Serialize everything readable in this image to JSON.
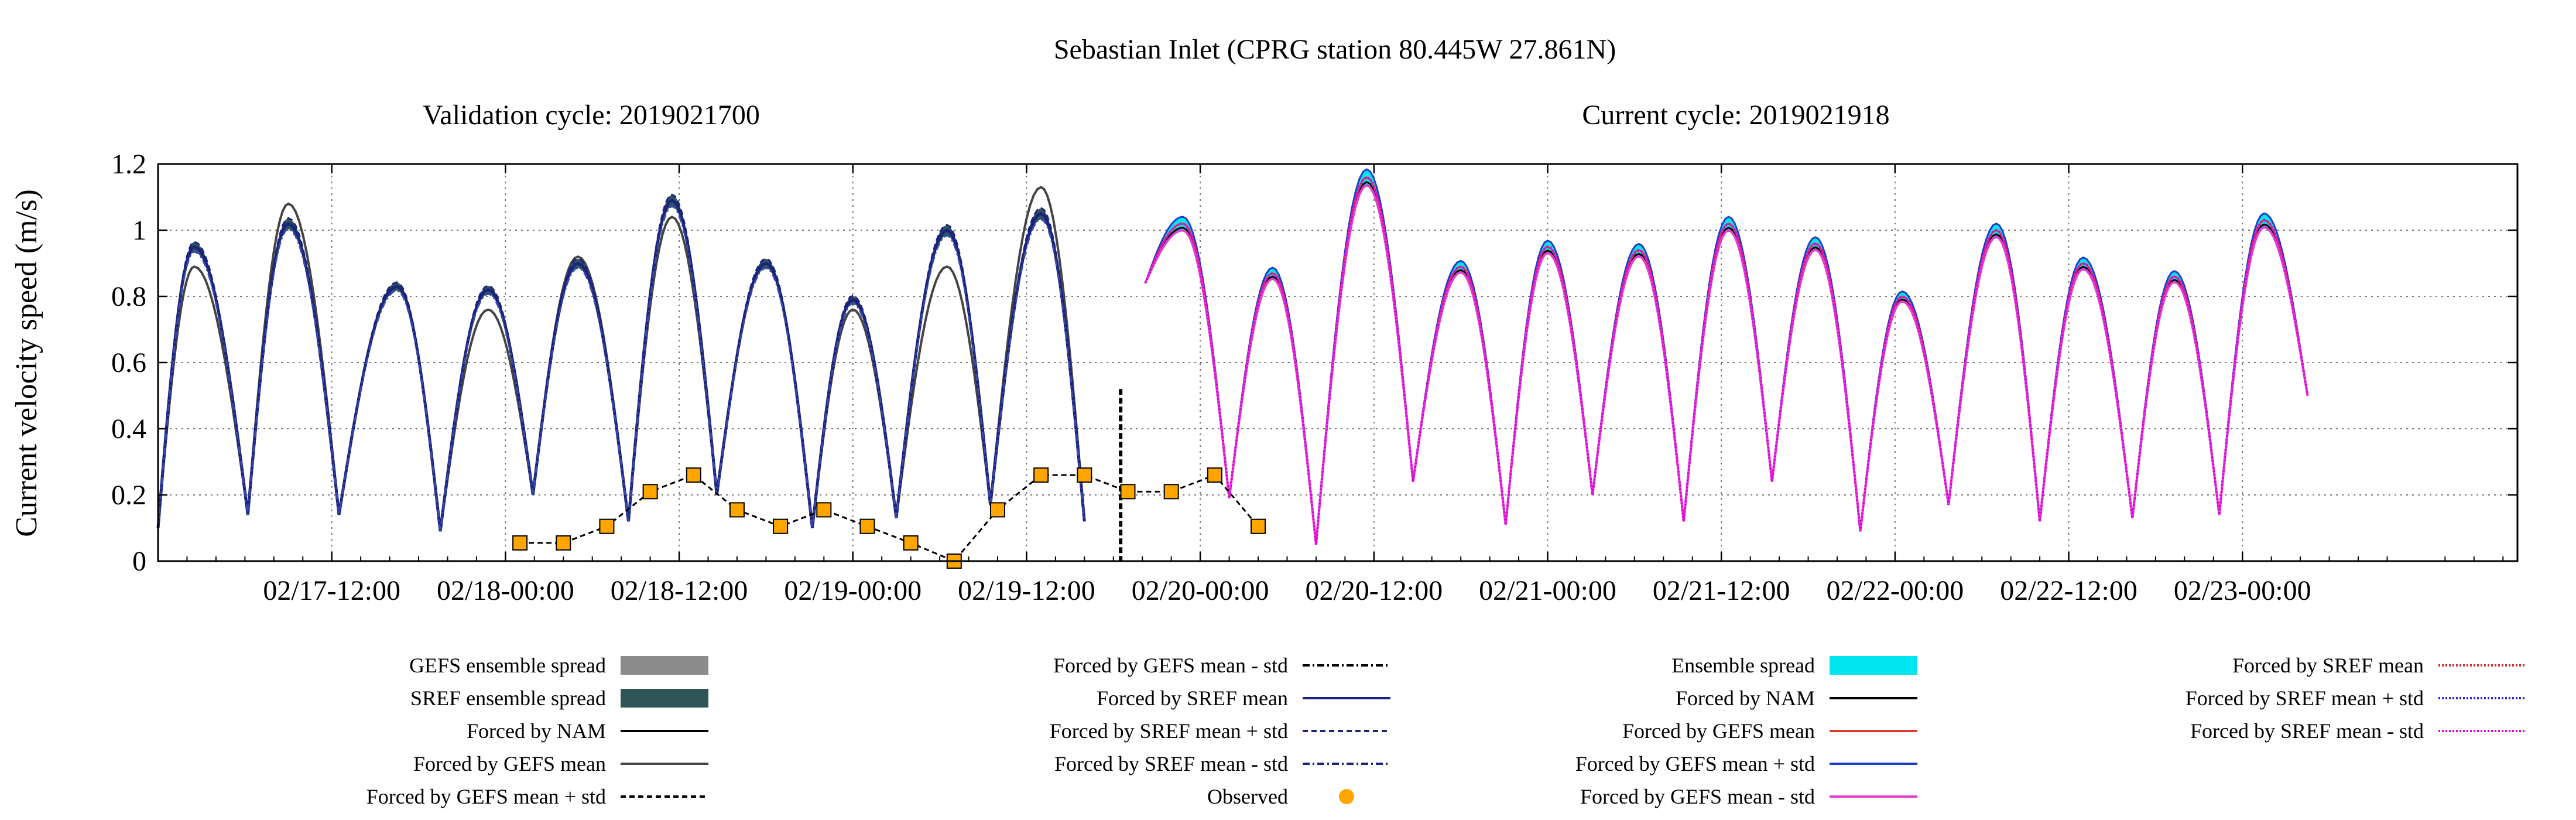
{
  "chart_data": {
    "type": "line",
    "title": "Sebastian Inlet (CPRG station 80.445W 27.861N)",
    "subtitles": {
      "left": "Validation cycle: 2019021700",
      "right": "Current cycle: 2019021918"
    },
    "ylabel": "Current velocity speed (m/s)",
    "xlabel": "",
    "ylim": [
      0,
      1.2
    ],
    "xlim_hours": [
      0,
      163
    ],
    "yticks": [
      "0",
      "0.2",
      "0.4",
      "0.6",
      "0.8",
      "1",
      "1.2"
    ],
    "xticks": [
      "02/17-12:00",
      "02/18-00:00",
      "02/18-12:00",
      "02/19-00:00",
      "02/19-12:00",
      "02/20-00:00",
      "02/20-12:00",
      "02/21-00:00",
      "02/21-12:00",
      "02/22-00:00",
      "02/22-12:00",
      "02/23-00:00"
    ],
    "grid": true,
    "cycle_divider_label": "",
    "legend": [
      {
        "label": "GEFS ensemble spread",
        "color": "#8c8c8c",
        "style": "band"
      },
      {
        "label": "SREF ensemble spread",
        "color": "#2f5656",
        "style": "band"
      },
      {
        "label": "Forced by NAM",
        "color": "#000000",
        "style": "solid"
      },
      {
        "label": "Forced by GEFS mean",
        "color": "#444444",
        "style": "solid"
      },
      {
        "label": "Forced by GEFS mean + std",
        "color": "#000000",
        "style": "dashed"
      },
      {
        "label": "Forced by GEFS mean - std",
        "color": "#000000",
        "style": "dashdot"
      },
      {
        "label": "Forced by SREF mean",
        "color": "#1a237e",
        "style": "solid"
      },
      {
        "label": "Forced by SREF mean + std",
        "color": "#1a237e",
        "style": "dashed"
      },
      {
        "label": "Forced by SREF mean - std",
        "color": "#1a237e",
        "style": "dashdot"
      },
      {
        "label": "Observed",
        "color": "#ffa500",
        "style": "dot"
      },
      {
        "label": "Ensemble spread",
        "color": "#00e5ee",
        "style": "band"
      },
      {
        "label": "Forced by NAM",
        "color": "#000000",
        "style": "solid"
      },
      {
        "label": "Forced by GEFS mean",
        "color": "#e53935",
        "style": "solid"
      },
      {
        "label": "Forced by GEFS mean + std",
        "color": "#1e3cc8",
        "style": "solid"
      },
      {
        "label": "Forced by GEFS mean - std",
        "color": "#e040d0",
        "style": "solid"
      },
      {
        "label": "Forced by SREF mean",
        "color": "#d32f2f",
        "style": "dotted"
      },
      {
        "label": "Forced by SREF mean + std",
        "color": "#2a2ad0",
        "style": "dotted"
      },
      {
        "label": "Forced by SREF mean - std",
        "color": "#e000e0",
        "style": "dotted"
      }
    ],
    "validation_peaks": [
      {
        "t": 2.5,
        "sref": 0.95,
        "gefs": 0.89
      },
      {
        "t": 9.0,
        "sref": 1.02,
        "gefs": 1.08
      },
      {
        "t": 16.5,
        "sref": 0.83,
        "gefs": 0.83
      },
      {
        "t": 22.8,
        "sref": 0.82,
        "gefs": 0.76
      },
      {
        "t": 29.0,
        "sref": 0.9,
        "gefs": 0.92
      },
      {
        "t": 35.5,
        "sref": 1.09,
        "gefs": 1.04
      },
      {
        "t": 42.0,
        "sref": 0.9,
        "gefs": 0.9
      },
      {
        "t": 48.0,
        "sref": 0.79,
        "gefs": 0.76
      },
      {
        "t": 54.5,
        "sref": 1.0,
        "gefs": 0.89
      },
      {
        "t": 61.0,
        "sref": 1.05,
        "gefs": 1.13
      }
    ],
    "validation_troughs": [
      {
        "t": 0.0,
        "v": 0.1
      },
      {
        "t": 6.2,
        "v": 0.14
      },
      {
        "t": 12.5,
        "v": 0.14
      },
      {
        "t": 19.5,
        "v": 0.09
      },
      {
        "t": 25.9,
        "v": 0.2
      },
      {
        "t": 32.5,
        "v": 0.12
      },
      {
        "t": 38.6,
        "v": 0.2
      },
      {
        "t": 45.2,
        "v": 0.1
      },
      {
        "t": 51.0,
        "v": 0.13
      },
      {
        "t": 57.5,
        "v": 0.17
      },
      {
        "t": 64.0,
        "v": 0.12
      },
      {
        "t": 68.2,
        "v": 0.84
      }
    ],
    "current_peaks": [
      {
        "t": 70.8,
        "v": 1.02
      },
      {
        "t": 77.0,
        "v": 0.87
      },
      {
        "t": 83.5,
        "v": 1.16
      },
      {
        "t": 90.0,
        "v": 0.89
      },
      {
        "t": 96.0,
        "v": 0.95
      },
      {
        "t": 102.3,
        "v": 0.94
      },
      {
        "t": 108.5,
        "v": 1.02
      },
      {
        "t": 114.5,
        "v": 0.96
      },
      {
        "t": 120.5,
        "v": 0.8
      },
      {
        "t": 127.0,
        "v": 1.0
      },
      {
        "t": 133.0,
        "v": 0.9
      },
      {
        "t": 139.3,
        "v": 0.86
      },
      {
        "t": 145.5,
        "v": 1.03
      }
    ],
    "current_troughs": [
      {
        "t": 68.2,
        "v": 0.84
      },
      {
        "t": 74.0,
        "v": 0.19
      },
      {
        "t": 80.0,
        "v": 0.05
      },
      {
        "t": 86.7,
        "v": 0.24
      },
      {
        "t": 93.1,
        "v": 0.11
      },
      {
        "t": 99.1,
        "v": 0.2
      },
      {
        "t": 105.4,
        "v": 0.12
      },
      {
        "t": 111.5,
        "v": 0.24
      },
      {
        "t": 117.6,
        "v": 0.09
      },
      {
        "t": 123.7,
        "v": 0.17
      },
      {
        "t": 130.0,
        "v": 0.12
      },
      {
        "t": 136.4,
        "v": 0.13
      },
      {
        "t": 142.4,
        "v": 0.14
      },
      {
        "t": 148.5,
        "v": 0.5
      }
    ],
    "observed": [
      {
        "t": 25.0,
        "v": 0.055
      },
      {
        "t": 28.0,
        "v": 0.055
      },
      {
        "t": 31.0,
        "v": 0.105
      },
      {
        "t": 34.0,
        "v": 0.21
      },
      {
        "t": 37.0,
        "v": 0.26
      },
      {
        "t": 40.0,
        "v": 0.155
      },
      {
        "t": 43.0,
        "v": 0.105
      },
      {
        "t": 46.0,
        "v": 0.155
      },
      {
        "t": 49.0,
        "v": 0.105
      },
      {
        "t": 52.0,
        "v": 0.055
      },
      {
        "t": 55.0,
        "v": 0.0
      },
      {
        "t": 58.0,
        "v": 0.155
      },
      {
        "t": 61.0,
        "v": 0.26
      },
      {
        "t": 64.0,
        "v": 0.26
      },
      {
        "t": 67.0,
        "v": 0.21
      },
      {
        "t": 70.0,
        "v": 0.21
      },
      {
        "t": 73.0,
        "v": 0.26
      },
      {
        "t": 76.0,
        "v": 0.105
      }
    ],
    "cycle_divider_t": 66.5,
    "cycle_divider_top": 0.52
  }
}
